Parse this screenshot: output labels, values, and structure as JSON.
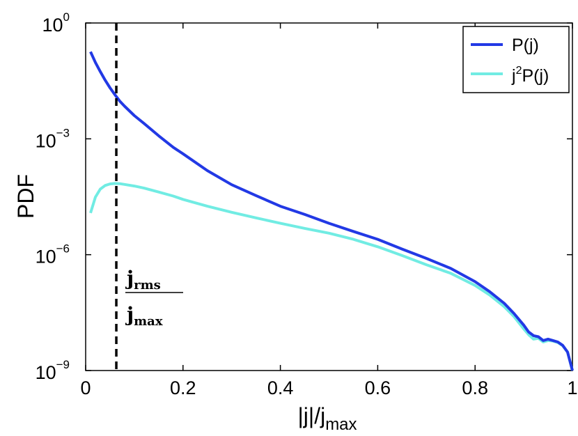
{
  "chart_data": {
    "type": "line",
    "y_scale": "log",
    "xlim": [
      0,
      1
    ],
    "ylim": [
      1e-09,
      1
    ],
    "x_ticks": [
      {
        "value": 0,
        "label": "0"
      },
      {
        "value": 0.2,
        "label": "0.2"
      },
      {
        "value": 0.4,
        "label": "0.4"
      },
      {
        "value": 0.6,
        "label": "0.6"
      },
      {
        "value": 0.8,
        "label": "0.8"
      },
      {
        "value": 1,
        "label": "1"
      }
    ],
    "y_ticks": [
      {
        "value": 1,
        "base": "10",
        "exp": "0"
      },
      {
        "value": 0.001,
        "base": "10",
        "exp": "−3"
      },
      {
        "value": 1e-06,
        "base": "10",
        "exp": "−6"
      },
      {
        "value": 1e-09,
        "base": "10",
        "exp": "−9"
      }
    ],
    "xlabel": {
      "main": "|j|/j",
      "sub": "max"
    },
    "ylabel": "PDF",
    "grid": false,
    "legend_position": "top-right",
    "vline": {
      "x": 0.063,
      "style": "dashed",
      "color": "#000000"
    },
    "annotation": {
      "numerator": "j",
      "numerator_sub": "rms",
      "denominator": "j",
      "denominator_sub": "max"
    },
    "series": [
      {
        "name": "P(j)",
        "legend_main": "P(j)",
        "color": "#2239e5",
        "x": [
          0.01,
          0.02,
          0.03,
          0.04,
          0.05,
          0.06,
          0.07,
          0.08,
          0.1,
          0.12,
          0.15,
          0.18,
          0.2,
          0.25,
          0.3,
          0.35,
          0.4,
          0.45,
          0.5,
          0.55,
          0.6,
          0.65,
          0.7,
          0.75,
          0.8,
          0.83,
          0.86,
          0.88,
          0.9,
          0.91,
          0.92,
          0.93,
          0.94,
          0.95,
          0.96,
          0.97,
          0.98,
          0.99,
          1.0
        ],
        "y": [
          0.18,
          0.095,
          0.055,
          0.033,
          0.021,
          0.014,
          0.0095,
          0.007,
          0.004,
          0.0025,
          0.0012,
          0.0006,
          0.00041,
          0.00015,
          6.5e-05,
          3.4e-05,
          1.8e-05,
          1.1e-05,
          6.5e-06,
          4e-06,
          2.5e-06,
          1.4e-06,
          8e-07,
          4.4e-07,
          2e-07,
          1.1e-07,
          5.5e-08,
          3e-08,
          1.5e-08,
          1e-08,
          8e-09,
          7.5e-09,
          6e-09,
          6.5e-09,
          6e-09,
          5.5e-09,
          4.5e-09,
          3e-09,
          1e-09
        ]
      },
      {
        "name": "j^2P(j)",
        "legend_main": "j",
        "legend_sup": "2",
        "legend_rest": "P(j)",
        "color": "#71ece3",
        "x": [
          0.01,
          0.02,
          0.03,
          0.04,
          0.05,
          0.06,
          0.07,
          0.08,
          0.1,
          0.12,
          0.15,
          0.18,
          0.2,
          0.25,
          0.3,
          0.35,
          0.4,
          0.45,
          0.5,
          0.55,
          0.6,
          0.65,
          0.7,
          0.75,
          0.8,
          0.83,
          0.86,
          0.88,
          0.9,
          0.91,
          0.92,
          0.93,
          0.94,
          0.95,
          0.96,
          0.97,
          0.98,
          0.99,
          1.0
        ],
        "y": [
          1.2e-05,
          3.1e-05,
          5e-05,
          6.2e-05,
          6.8e-05,
          7e-05,
          6.9e-05,
          6.6e-05,
          6e-05,
          5.3e-05,
          4.2e-05,
          3.3e-05,
          2.7e-05,
          1.8e-05,
          1.25e-05,
          9e-06,
          6.5e-06,
          4.8e-06,
          3.6e-06,
          2.5e-06,
          1.6e-06,
          9.5e-07,
          5.5e-07,
          3.3e-07,
          1.6e-07,
          9e-08,
          4.5e-08,
          2.5e-08,
          1.2e-08,
          8.5e-09,
          6.5e-09,
          6.8e-09,
          5.5e-09,
          6e-09,
          5.8e-09,
          5.3e-09,
          4.4e-09,
          3e-09,
          1e-09
        ]
      }
    ]
  }
}
